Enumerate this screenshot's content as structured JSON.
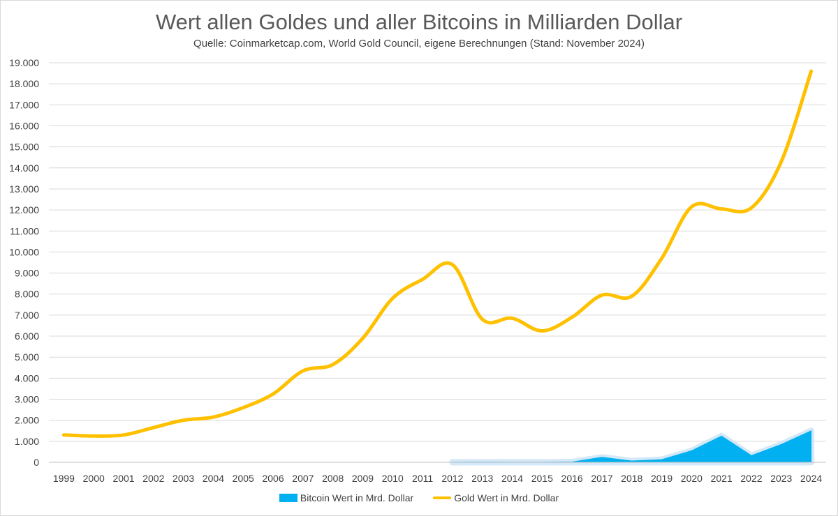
{
  "chart_data": {
    "type": "line",
    "title": "Wert allen Goldes und aller Bitcoins in Milliarden Dollar",
    "subtitle": "Quelle: Coinmarketcap.com, World Gold Council, eigene Berechnungen (Stand: November 2024)",
    "xlabel": "",
    "ylabel": "",
    "ylim": [
      0,
      19000
    ],
    "grid": true,
    "legend_position": "bottom",
    "categories": [
      "1999",
      "2000",
      "2001",
      "2002",
      "2003",
      "2004",
      "2005",
      "2006",
      "2007",
      "2008",
      "2009",
      "2010",
      "2011",
      "2012",
      "2013",
      "2014",
      "2015",
      "2016",
      "2017",
      "2018",
      "2019",
      "2020",
      "2021",
      "2022",
      "2023",
      "2024"
    ],
    "yticks": [
      0,
      1000,
      2000,
      3000,
      4000,
      5000,
      6000,
      7000,
      8000,
      9000,
      10000,
      11000,
      12000,
      13000,
      14000,
      15000,
      16000,
      17000,
      18000,
      19000
    ],
    "ytick_labels": [
      "0",
      "1.000",
      "2.000",
      "3.000",
      "4.000",
      "5.000",
      "6.000",
      "7.000",
      "8.000",
      "9.000",
      "10.000",
      "11.000",
      "12.000",
      "13.000",
      "14.000",
      "15.000",
      "16.000",
      "17.000",
      "18.000",
      "19.000"
    ],
    "series": [
      {
        "name": "Bitcoin Wert in Mrd. Dollar",
        "type": "area",
        "color": "#00b0f0",
        "values": [
          null,
          null,
          null,
          null,
          null,
          null,
          null,
          null,
          null,
          null,
          null,
          null,
          null,
          5,
          10,
          5,
          6,
          15,
          240,
          65,
          130,
          550,
          1250,
          320,
          850,
          1500
        ]
      },
      {
        "name": "Gold Wert in Mrd. Dollar",
        "type": "line",
        "color": "#ffc000",
        "values": [
          1300,
          1250,
          1300,
          1650,
          2000,
          2150,
          2600,
          3250,
          4350,
          4650,
          5900,
          7800,
          8700,
          9400,
          6800,
          6850,
          6250,
          6900,
          7950,
          7900,
          9700,
          12150,
          12050,
          12100,
          14300,
          18600
        ]
      }
    ]
  }
}
